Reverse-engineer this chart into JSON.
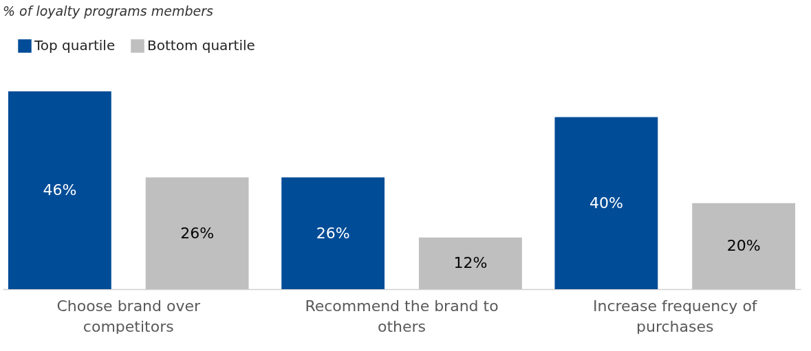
{
  "chart_data": {
    "type": "bar",
    "title": "% of loyalty programs members",
    "categories": [
      "Choose brand over competitors",
      "Recommend the brand to others",
      "Increase frequency of purchases"
    ],
    "series": [
      {
        "name": "Top quartile",
        "color": "#004c97",
        "values": [
          46,
          26,
          40
        ],
        "value_labels": [
          "46%",
          "26%",
          "40%"
        ]
      },
      {
        "name": "Bottom quartile",
        "color": "#bfbfbf",
        "values": [
          26,
          12,
          20
        ],
        "value_labels": [
          "26%",
          "12%",
          "20%"
        ]
      }
    ],
    "legend": "top left",
    "grid": false
  }
}
